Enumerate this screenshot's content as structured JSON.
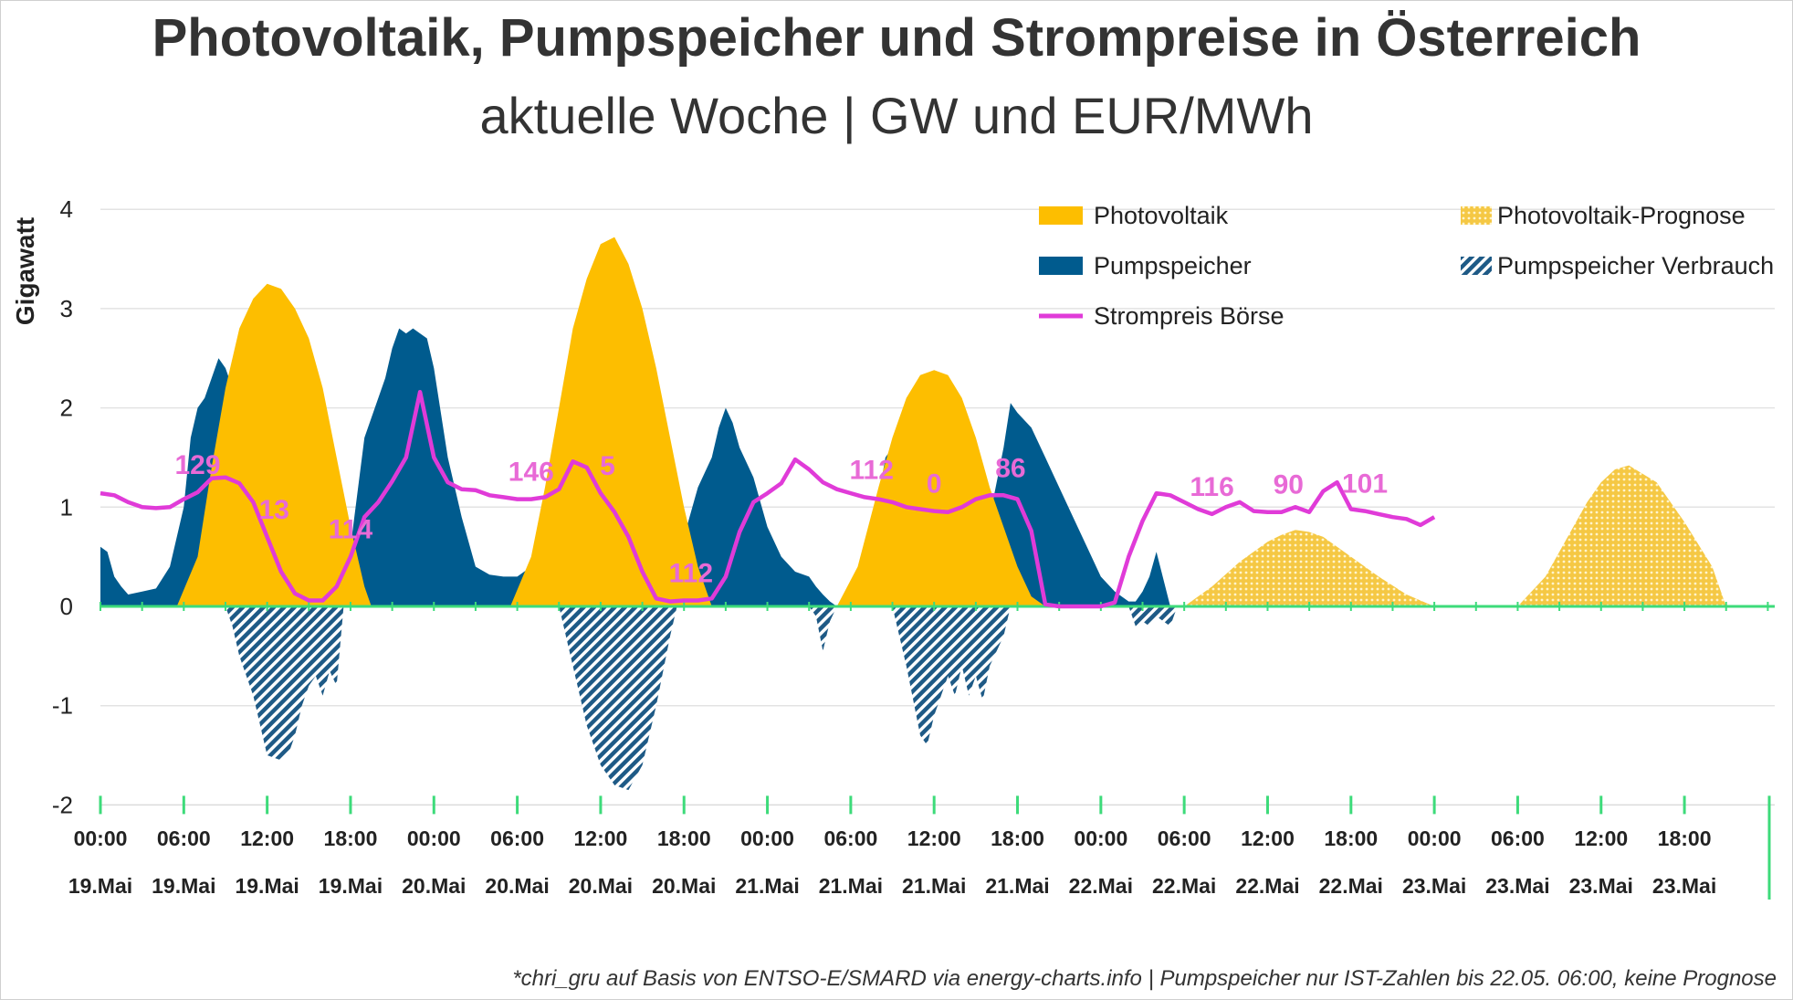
{
  "title": "Photovoltaik, Pumpspeicher und Strompreise in Österreich",
  "subtitle": "aktuelle Woche | GW und EUR/MWh",
  "footnote": "*chri_gru auf Basis von ENTSO-E/SMARD via energy-charts.info | Pumpspeicher nur IST-Zahlen bis 22.05. 06:00, keine Prognose",
  "colors": {
    "pv": "#FDBE00",
    "pv_forecast": "#F5C844",
    "pump": "#005B8E",
    "pump_consumption": "#1E5A86",
    "price": "#E03BD8",
    "price_label": "#E86AD6",
    "axis": "#3DDB7A",
    "grid": "#E3E3E3"
  },
  "legend": [
    {
      "key": "pv",
      "label": "Photovoltaik",
      "icon": "solid-swatch"
    },
    {
      "key": "pv_forecast",
      "label": "Photovoltaik-Prognose",
      "icon": "dotted-swatch"
    },
    {
      "key": "pump",
      "label": "Pumpspeicher",
      "icon": "solid-swatch"
    },
    {
      "key": "pump_consumption",
      "label": "Pumpspeicher Verbrauch",
      "icon": "hatched-swatch"
    },
    {
      "key": "price",
      "label": "Strompreis Börse",
      "icon": "line-swatch"
    }
  ],
  "chart_data": {
    "type": "area",
    "ylabel": "Gigawatt",
    "ylim": [
      -2,
      4
    ],
    "yticks": [
      -2,
      -1,
      0,
      1,
      2,
      3,
      4
    ],
    "grid": true,
    "legend_position": "top-right",
    "x_unit": "hours since 19.Mai 00:00",
    "xlim": [
      0,
      120
    ],
    "xticks": [
      {
        "time": "00:00",
        "date": "19.Mai"
      },
      {
        "time": "06:00",
        "date": "19.Mai"
      },
      {
        "time": "12:00",
        "date": "19.Mai"
      },
      {
        "time": "18:00",
        "date": "19.Mai"
      },
      {
        "time": "00:00",
        "date": "20.Mai"
      },
      {
        "time": "06:00",
        "date": "20.Mai"
      },
      {
        "time": "12:00",
        "date": "20.Mai"
      },
      {
        "time": "18:00",
        "date": "20.Mai"
      },
      {
        "time": "00:00",
        "date": "21.Mai"
      },
      {
        "time": "06:00",
        "date": "21.Mai"
      },
      {
        "time": "12:00",
        "date": "21.Mai"
      },
      {
        "time": "18:00",
        "date": "21.Mai"
      },
      {
        "time": "00:00",
        "date": "22.Mai"
      },
      {
        "time": "06:00",
        "date": "22.Mai"
      },
      {
        "time": "12:00",
        "date": "22.Mai"
      },
      {
        "time": "18:00",
        "date": "22.Mai"
      },
      {
        "time": "00:00",
        "date": "23.Mai"
      },
      {
        "time": "06:00",
        "date": "23.Mai"
      },
      {
        "time": "12:00",
        "date": "23.Mai"
      },
      {
        "time": "18:00",
        "date": "23.Mai"
      }
    ],
    "series": [
      {
        "name": "Photovoltaik",
        "key": "pv",
        "style": "area",
        "x": [
          5.5,
          7,
          8,
          9,
          10,
          11,
          12,
          13,
          14,
          15,
          16,
          17,
          18,
          19,
          19.5,
          29.5,
          31,
          32,
          33,
          34,
          35,
          36,
          37,
          38,
          39,
          40,
          41,
          42,
          43,
          44,
          53,
          54.5,
          56,
          57,
          58,
          59,
          60,
          61,
          62,
          63,
          64,
          65,
          66,
          67,
          68
        ],
        "y": [
          0,
          0.5,
          1.4,
          2.2,
          2.8,
          3.1,
          3.25,
          3.2,
          3.0,
          2.7,
          2.2,
          1.5,
          0.8,
          0.2,
          0,
          0,
          0.5,
          1.2,
          2.0,
          2.8,
          3.3,
          3.65,
          3.72,
          3.45,
          3.0,
          2.4,
          1.7,
          1.0,
          0.4,
          0,
          0,
          0.4,
          1.2,
          1.7,
          2.1,
          2.33,
          2.38,
          2.33,
          2.1,
          1.7,
          1.2,
          0.8,
          0.4,
          0.1,
          0
        ]
      },
      {
        "name": "Photovoltaik-Prognose",
        "key": "pv_forecast",
        "style": "dotted-area",
        "x": [
          78,
          80,
          82,
          84,
          85,
          86,
          87,
          88,
          90,
          92,
          94,
          96,
          102,
          104,
          106,
          107,
          108,
          109,
          110,
          112,
          114,
          116,
          117
        ],
        "y": [
          0,
          0.2,
          0.45,
          0.65,
          0.72,
          0.77,
          0.75,
          0.7,
          0.5,
          0.3,
          0.12,
          0,
          0,
          0.3,
          0.8,
          1.05,
          1.25,
          1.38,
          1.42,
          1.25,
          0.85,
          0.4,
          0
        ]
      },
      {
        "name": "Pumpspeicher",
        "key": "pump",
        "style": "area",
        "x": [
          0,
          0.5,
          1,
          1.5,
          2,
          3,
          4,
          5,
          6,
          6.5,
          7,
          7.5,
          8,
          8.5,
          9,
          9.5,
          10,
          10.5,
          11,
          11.5,
          12,
          12.5,
          13,
          17,
          18,
          19,
          20,
          20.5,
          21,
          21.5,
          22,
          22.5,
          23,
          23.5,
          24,
          25,
          26,
          27,
          28,
          29,
          30,
          31,
          31.5,
          32,
          32.5,
          33,
          33.5,
          34,
          41,
          42,
          43,
          44,
          44.5,
          45,
          45.5,
          46,
          47,
          48,
          49,
          50,
          51,
          51.5,
          52,
          52.5,
          53,
          54,
          55,
          56,
          56.5,
          57,
          63,
          64,
          65,
          65.5,
          66,
          67,
          68,
          69,
          70,
          71,
          72,
          73,
          74,
          74.5,
          75,
          75.5,
          76,
          77,
          78
        ],
        "y": [
          0.6,
          0.55,
          0.3,
          0.2,
          0.12,
          0.15,
          0.18,
          0.4,
          1.0,
          1.7,
          2.0,
          2.1,
          2.3,
          2.5,
          2.4,
          2.2,
          1.7,
          1.1,
          0.7,
          0.3,
          0,
          0,
          0,
          0,
          0.6,
          1.7,
          2.1,
          2.3,
          2.6,
          2.8,
          2.75,
          2.8,
          2.75,
          2.7,
          2.4,
          1.5,
          0.9,
          0.4,
          0.32,
          0.3,
          0.3,
          0.4,
          0.7,
          1.0,
          1.4,
          1.8,
          2.3,
          2.7,
          0,
          0.7,
          1.2,
          1.5,
          1.8,
          2.0,
          1.85,
          1.6,
          1.3,
          0.8,
          0.5,
          0.35,
          0.3,
          0.2,
          0.12,
          0.05,
          0,
          0.15,
          0.6,
          1.1,
          1.5,
          1.6,
          0,
          0.9,
          1.6,
          2.05,
          1.95,
          1.8,
          1.5,
          1.2,
          0.9,
          0.6,
          0.3,
          0.15,
          0.05,
          0.05,
          0.15,
          0.3,
          0.55,
          0,
          0
        ]
      },
      {
        "name": "Pumpspeicher Verbrauch",
        "key": "pump_consumption",
        "style": "hatched-area",
        "x": [
          9,
          9.5,
          10,
          11,
          11.5,
          12,
          13,
          13.5,
          14,
          14.5,
          15,
          15.5,
          16,
          16.5,
          17,
          17.5,
          33,
          34,
          35,
          36,
          37,
          38,
          39,
          40,
          41,
          41.5,
          51,
          51.5,
          52,
          52.5,
          53,
          57,
          58,
          59,
          59.5,
          60,
          61,
          61.5,
          62,
          62.5,
          63,
          63.5,
          64,
          65,
          65.5,
          74,
          74.5,
          75,
          75.5,
          76,
          77,
          77.5
        ],
        "y": [
          0,
          -0.2,
          -0.5,
          -0.9,
          -1.2,
          -1.5,
          -1.55,
          -1.5,
          -1.3,
          -1.0,
          -0.8,
          -0.7,
          -0.9,
          -0.65,
          -0.8,
          0,
          0,
          -0.6,
          -1.2,
          -1.6,
          -1.8,
          -1.85,
          -1.6,
          -1.0,
          -0.3,
          0,
          0,
          -0.1,
          -0.45,
          -0.15,
          0,
          0,
          -0.6,
          -1.3,
          -1.4,
          -1.1,
          -0.7,
          -0.9,
          -0.6,
          -0.9,
          -0.7,
          -0.95,
          -0.6,
          -0.3,
          0,
          0,
          -0.2,
          -0.15,
          -0.2,
          -0.1,
          -0.2,
          0
        ]
      },
      {
        "name": "Strompreis Börse",
        "key": "price",
        "style": "line",
        "y_scale": "EUR/MWh, 100 EUR/MWh per GW tick",
        "x": [
          0,
          1,
          2,
          3,
          4,
          5,
          6,
          7,
          8,
          9,
          10,
          11,
          12,
          13,
          14,
          15,
          16,
          17,
          18,
          19,
          20,
          21,
          22,
          23,
          24,
          25,
          26,
          27,
          28,
          29,
          30,
          31,
          32,
          33,
          34,
          35,
          36,
          37,
          38,
          39,
          40,
          41,
          42,
          43,
          44,
          45,
          46,
          47,
          48,
          49,
          50,
          51,
          52,
          53,
          54,
          55,
          56,
          57,
          58,
          59,
          60,
          61,
          62,
          63,
          64,
          65,
          66,
          67,
          68,
          69,
          70,
          71,
          72,
          73,
          74,
          75,
          76,
          77,
          78,
          79,
          80,
          81,
          82,
          83,
          84,
          85,
          86,
          87,
          88,
          89,
          90,
          91,
          92,
          93,
          94,
          95,
          96
        ],
        "y": [
          114,
          112,
          105,
          100,
          99,
          100,
          108,
          115,
          129,
          130,
          124,
          105,
          70,
          35,
          13,
          6,
          6,
          20,
          50,
          90,
          105,
          126,
          150,
          216,
          150,
          125,
          118,
          117,
          112,
          110,
          108,
          108,
          110,
          118,
          146,
          140,
          114,
          95,
          70,
          35,
          8,
          5,
          6,
          6,
          8,
          30,
          75,
          105,
          114,
          124,
          148,
          138,
          125,
          118,
          114,
          110,
          108,
          105,
          100,
          98,
          96,
          95,
          100,
          108,
          112,
          112,
          108,
          76,
          2,
          0,
          0,
          0,
          0,
          4,
          50,
          86,
          114,
          112,
          105,
          98,
          93,
          100,
          105,
          96,
          95,
          95,
          100,
          95,
          116,
          125,
          98,
          96,
          93,
          90,
          88,
          82,
          90
        ]
      }
    ],
    "price_labels": [
      {
        "x": 7,
        "value": "129"
      },
      {
        "x": 12.5,
        "value": "13"
      },
      {
        "x": 18,
        "value": "114"
      },
      {
        "x": 31,
        "value": "146"
      },
      {
        "x": 36.5,
        "value": "5"
      },
      {
        "x": 42.5,
        "value": "112"
      },
      {
        "x": 55.5,
        "value": "112"
      },
      {
        "x": 60,
        "value": "0"
      },
      {
        "x": 65.5,
        "value": "86"
      },
      {
        "x": 80,
        "value": "116"
      },
      {
        "x": 85.5,
        "value": "90"
      },
      {
        "x": 91,
        "value": "101"
      }
    ]
  }
}
